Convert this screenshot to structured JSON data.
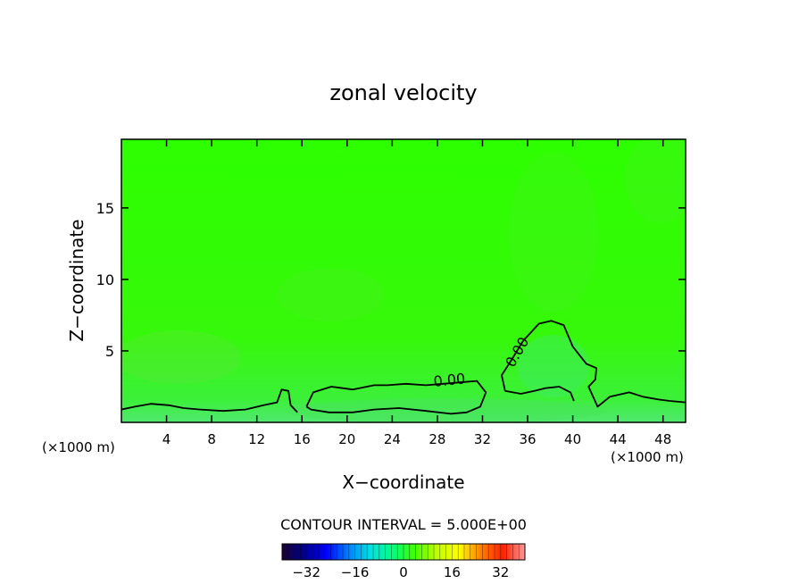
{
  "chart_data": {
    "type": "heatmap",
    "title": "zonal velocity",
    "xlabel": "X−coordinate",
    "ylabel": "Z−coordinate",
    "x_unit_left": "(×1000 m)",
    "x_unit_right": "(×1000 m)",
    "xlim": [
      0,
      50
    ],
    "ylim": [
      0,
      19.8
    ],
    "x_ticks": [
      4,
      8,
      12,
      16,
      20,
      24,
      28,
      32,
      36,
      40,
      44,
      48
    ],
    "y_ticks": [
      5,
      10,
      15
    ],
    "x_tick_labels": [
      "4",
      "8",
      "12",
      "16",
      "20",
      "24",
      "28",
      "32",
      "36",
      "40",
      "44",
      "48"
    ],
    "y_tick_labels": [
      "5",
      "10",
      "15"
    ],
    "contour_interval_text": "CONTOUR INTERVAL = 5.000E+00",
    "contour_label": "0.00",
    "zero_contours": [
      [
        [
          0,
          0.9
        ],
        [
          1.2,
          1.1
        ],
        [
          2.6,
          1.3
        ],
        [
          4.2,
          1.2
        ],
        [
          5.5,
          1.0
        ],
        [
          7,
          0.9
        ],
        [
          9,
          0.8
        ],
        [
          11,
          0.9
        ],
        [
          12.6,
          1.2
        ],
        [
          13.8,
          1.4
        ],
        [
          14.2,
          2.3
        ],
        [
          14.8,
          2.2
        ],
        [
          15,
          1.2
        ],
        [
          15.6,
          0.7
        ]
      ],
      [
        [
          16.4,
          1.1
        ],
        [
          17,
          2.1
        ],
        [
          18.6,
          2.5
        ],
        [
          20.5,
          2.3
        ],
        [
          22.4,
          2.6
        ],
        [
          23.6,
          2.6
        ],
        [
          25.2,
          2.7
        ],
        [
          27,
          2.6
        ],
        [
          28.5,
          2.7
        ],
        [
          30,
          2.8
        ],
        [
          31.5,
          2.9
        ],
        [
          32.3,
          2.1
        ],
        [
          31.8,
          1.1
        ],
        [
          30.6,
          0.7
        ],
        [
          29.2,
          0.6
        ],
        [
          27,
          0.8
        ],
        [
          24.6,
          1.0
        ],
        [
          22.4,
          0.9
        ],
        [
          20.5,
          0.7
        ],
        [
          18.4,
          0.7
        ],
        [
          16.8,
          0.9
        ],
        [
          16.4,
          1.1
        ]
      ],
      [
        [
          34,
          2.2
        ],
        [
          33.7,
          3.3
        ],
        [
          34.6,
          4.4
        ],
        [
          35.6,
          5.7
        ],
        [
          37,
          6.9
        ],
        [
          38.1,
          7.1
        ],
        [
          39.2,
          6.8
        ],
        [
          40,
          5.3
        ],
        [
          41.2,
          4.1
        ],
        [
          42.1,
          3.8
        ],
        [
          42,
          3.0
        ],
        [
          41.4,
          2.5
        ],
        [
          41.8,
          1.8
        ],
        [
          42.2,
          1.1
        ],
        [
          43.3,
          1.8
        ],
        [
          45,
          2.1
        ],
        [
          46.2,
          1.8
        ],
        [
          47.6,
          1.6
        ],
        [
          48.6,
          1.5
        ],
        [
          50,
          1.4
        ]
      ],
      [
        [
          34,
          2.2
        ],
        [
          35.4,
          2.0
        ],
        [
          36.6,
          2.2
        ],
        [
          37.6,
          2.4
        ],
        [
          38.8,
          2.5
        ],
        [
          39.8,
          2.1
        ],
        [
          40.1,
          1.5
        ]
      ]
    ],
    "colorbar": {
      "range": [
        -40,
        40
      ],
      "tick_values": [
        -32,
        -16,
        0,
        16,
        32
      ],
      "tick_labels": [
        "−32",
        "−16",
        "0",
        "16",
        "32"
      ],
      "colormap": [
        "#1a0033",
        "#00008b",
        "#0000ff",
        "#0080ff",
        "#00e0e0",
        "#00ff80",
        "#40ff00",
        "#c0ff00",
        "#ffff00",
        "#ff8000",
        "#ff2000",
        "#ff9a9a"
      ]
    },
    "field_color": "#2dff00",
    "grid": false
  }
}
